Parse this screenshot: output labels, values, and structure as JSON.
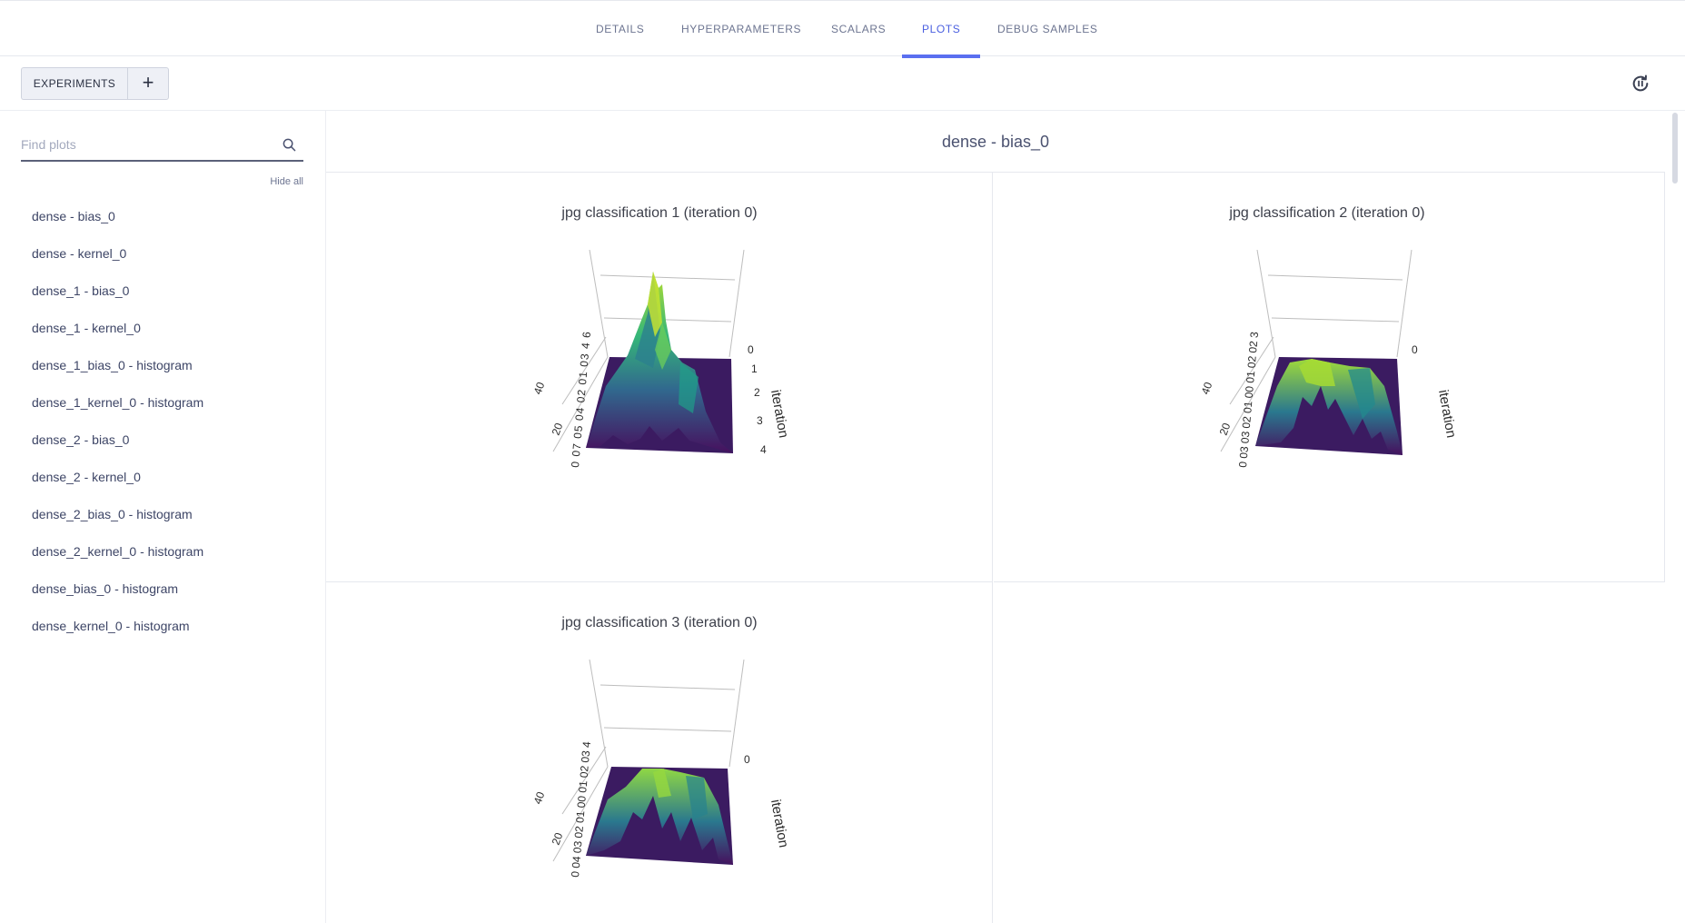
{
  "tabs": [
    {
      "label": "DETAILS"
    },
    {
      "label": "HYPERPARAMETERS"
    },
    {
      "label": "SCALARS"
    },
    {
      "label": "PLOTS"
    },
    {
      "label": "DEBUG SAMPLES"
    }
  ],
  "active_tab": "PLOTS",
  "toolbar": {
    "experiments_label": "EXPERIMENTS",
    "add_label": "+",
    "refresh_icon": "refresh-pause-icon"
  },
  "sidebar": {
    "search_placeholder": "Find plots",
    "search_icon": "search-icon",
    "hide_all_label": "Hide all",
    "items": [
      {
        "label": "dense - bias_0"
      },
      {
        "label": "dense - kernel_0"
      },
      {
        "label": "dense_1 - bias_0"
      },
      {
        "label": "dense_1 - kernel_0"
      },
      {
        "label": "dense_1_bias_0 - histogram"
      },
      {
        "label": "dense_1_kernel_0 - histogram"
      },
      {
        "label": "dense_2 - bias_0"
      },
      {
        "label": "dense_2 - kernel_0"
      },
      {
        "label": "dense_2_bias_0 - histogram"
      },
      {
        "label": "dense_2_kernel_0 - histogram"
      },
      {
        "label": "dense_bias_0 - histogram"
      },
      {
        "label": "dense_kernel_0 - histogram"
      }
    ]
  },
  "main": {
    "group_title": "dense - bias_0",
    "plots": [
      {
        "title": "jpg classification 1 (iteration 0)",
        "iteration_ticks": [
          "0",
          "1",
          "2",
          "3",
          "4"
        ],
        "iteration_label": "iteration",
        "left_ticks": [
          "40",
          "20"
        ],
        "bottom_ticks": "0 07 05 04 02 01 03 4 6"
      },
      {
        "title": "jpg classification 2 (iteration 0)",
        "iteration_ticks": [
          "0"
        ],
        "iteration_label": "iteration",
        "left_ticks": [
          "40",
          "20"
        ],
        "bottom_ticks": "0 03 03 02 01 00 01 02 02 3"
      },
      {
        "title": "jpg classification 3 (iteration 0)",
        "iteration_ticks": [
          "0"
        ],
        "iteration_label": "iteration",
        "left_ticks": [
          "40",
          "20"
        ],
        "bottom_ticks": "0 04 03 02 01 00 01 02 03 4"
      }
    ]
  },
  "colors": {
    "accent": "#5a6ff0",
    "viridis_dark": "#46105e",
    "viridis_mid": "#21918c",
    "viridis_bright": "#b5de2b"
  }
}
